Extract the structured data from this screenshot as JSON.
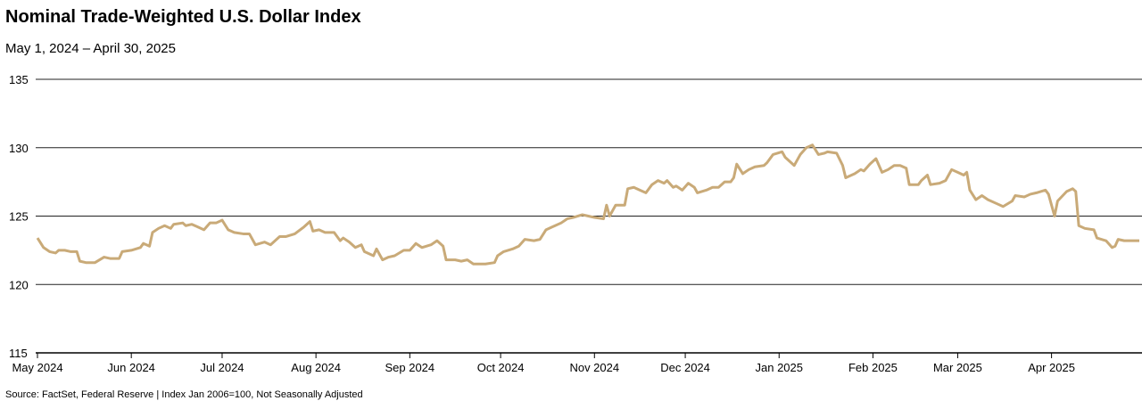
{
  "chart_data": {
    "type": "line",
    "title": "Nominal Trade-Weighted U.S. Dollar Index",
    "subtitle": "May 1, 2024 – April 30, 2025",
    "note": "Source: FactSet, Federal Reserve  |  Index Jan 2006=100, Not Seasonally Adjusted",
    "color": "#c9aa78",
    "grid": true,
    "xlim": [
      0,
      364
    ],
    "xticks": [
      {
        "value": 0,
        "label": "May 2024"
      },
      {
        "value": 31,
        "label": "Jun 2024"
      },
      {
        "value": 61,
        "label": "Jul 2024"
      },
      {
        "value": 92,
        "label": "Aug 2024"
      },
      {
        "value": 123,
        "label": "Sep 2024"
      },
      {
        "value": 153,
        "label": "Oct 2024"
      },
      {
        "value": 184,
        "label": "Nov 2024"
      },
      {
        "value": 214,
        "label": "Dec 2024"
      },
      {
        "value": 245,
        "label": "Jan 2025"
      },
      {
        "value": 276,
        "label": "Feb 2025"
      },
      {
        "value": 304,
        "label": "Mar 2025"
      },
      {
        "value": 335,
        "label": "Apr 2025"
      }
    ],
    "ylim": [
      115,
      135
    ],
    "yticks": [
      115,
      120,
      125,
      130,
      135
    ],
    "x": [
      0,
      2,
      4,
      6,
      7,
      9,
      11,
      13,
      14,
      16,
      19,
      22,
      24,
      27,
      28,
      31,
      34,
      35,
      37,
      38,
      40,
      42,
      44,
      45,
      48,
      49,
      51,
      53,
      55,
      57,
      59,
      61,
      63,
      65,
      68,
      70,
      72,
      75,
      77,
      80,
      82,
      85,
      88,
      90,
      91,
      93,
      95,
      98,
      100,
      101,
      103,
      105,
      107,
      108,
      111,
      112,
      114,
      116,
      118,
      121,
      123,
      125,
      127,
      130,
      132,
      134,
      135,
      138,
      140,
      142,
      144,
      147,
      148,
      151,
      152,
      154,
      157,
      159,
      161,
      164,
      166,
      168,
      170,
      173,
      175,
      177,
      180,
      182,
      184,
      187,
      188,
      189,
      190,
      191,
      194,
      195,
      197,
      199,
      201,
      203,
      205,
      207,
      208,
      210,
      211,
      213,
      215,
      217,
      218,
      221,
      223,
      225,
      227,
      229,
      230,
      231,
      233,
      235,
      237,
      240,
      241,
      243,
      246,
      247,
      250,
      252,
      254,
      256,
      258,
      260,
      261,
      264,
      266,
      267,
      270,
      272,
      273,
      275,
      277,
      279,
      281,
      283,
      285,
      287,
      288,
      291,
      292,
      294,
      295,
      298,
      300,
      302,
      304,
      306,
      307,
      308,
      310,
      312,
      314,
      317,
      319,
      322,
      323,
      326,
      328,
      330,
      333,
      334,
      336,
      337,
      340,
      342,
      343,
      344,
      346,
      349,
      350,
      353,
      355,
      356,
      357,
      359,
      364
    ],
    "values": [
      123.4,
      122.7,
      122.4,
      122.3,
      122.5,
      122.5,
      122.4,
      122.4,
      121.7,
      121.6,
      121.6,
      122.0,
      121.9,
      121.9,
      122.4,
      122.5,
      122.7,
      123.0,
      122.8,
      123.8,
      124.1,
      124.3,
      124.1,
      124.4,
      124.5,
      124.3,
      124.4,
      124.2,
      124.0,
      124.5,
      124.5,
      124.7,
      124.0,
      123.8,
      123.7,
      123.7,
      122.9,
      123.1,
      122.9,
      123.5,
      123.5,
      123.7,
      124.2,
      124.6,
      123.9,
      124.0,
      123.8,
      123.8,
      123.2,
      123.4,
      123.1,
      122.7,
      122.9,
      122.4,
      122.1,
      122.6,
      121.8,
      122.0,
      122.1,
      122.5,
      122.5,
      123.0,
      122.7,
      122.9,
      123.2,
      122.8,
      121.8,
      121.8,
      121.7,
      121.8,
      121.5,
      121.5,
      121.5,
      121.6,
      122.1,
      122.4,
      122.6,
      122.8,
      123.3,
      123.2,
      123.3,
      124.0,
      124.2,
      124.5,
      124.8,
      124.9,
      125.1,
      125.0,
      124.9,
      124.8,
      125.8,
      125.0,
      125.4,
      125.8,
      125.8,
      127.0,
      127.1,
      126.9,
      126.7,
      127.3,
      127.6,
      127.4,
      127.6,
      127.1,
      127.2,
      126.9,
      127.4,
      127.1,
      126.7,
      126.9,
      127.1,
      127.1,
      127.5,
      127.5,
      127.8,
      128.8,
      128.1,
      128.4,
      128.6,
      128.7,
      128.9,
      129.5,
      129.7,
      129.3,
      128.7,
      129.5,
      130.0,
      130.2,
      129.5,
      129.6,
      129.7,
      129.6,
      128.7,
      127.8,
      128.1,
      128.4,
      128.3,
      128.8,
      129.2,
      128.2,
      128.4,
      128.7,
      128.7,
      128.5,
      127.3,
      127.3,
      127.6,
      128.0,
      127.3,
      127.4,
      127.6,
      128.4,
      128.2,
      128.0,
      128.2,
      126.9,
      126.2,
      126.5,
      126.2,
      125.9,
      125.7,
      126.1,
      126.5,
      126.4,
      126.6,
      126.7,
      126.9,
      126.6,
      125.0,
      126.1,
      126.8,
      127.0,
      126.8,
      124.3,
      124.1,
      124.0,
      123.4,
      123.2,
      122.7,
      122.8,
      123.3,
      123.2,
      123.2
    ]
  }
}
